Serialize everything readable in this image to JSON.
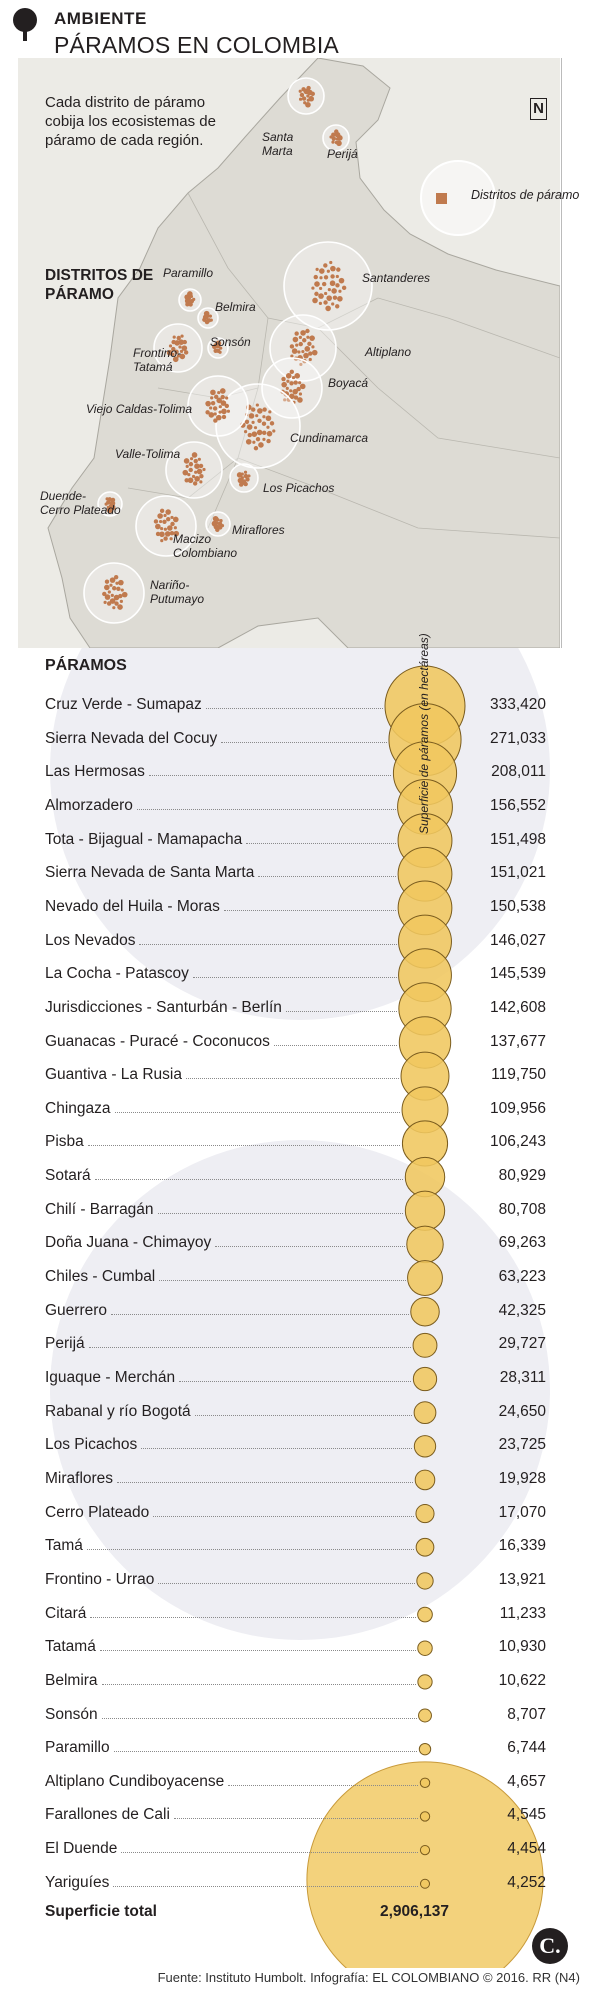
{
  "header": {
    "section": "AMBIENTE",
    "title": "PÁRAMOS EN COLOMBIA"
  },
  "map": {
    "intro": "Cada distrito de páramo cobija los ecosistemas de páramo de cada región.",
    "districts_heading": "DISTRITOS DE PÁRAMO",
    "legend_label": "Distritos de páramo",
    "north_label": "N",
    "colors": {
      "land": "#dddbd4",
      "outside": "#ecebe6",
      "paramo": "#c07a4e",
      "circle": "#ffffff"
    },
    "districts": [
      {
        "name": "Santa Marta",
        "lines": [
          "Santa",
          "Marta"
        ]
      },
      {
        "name": "Perijá",
        "lines": [
          "Perijá"
        ]
      },
      {
        "name": "Santanderes",
        "lines": [
          "Santanderes"
        ]
      },
      {
        "name": "Altiplano",
        "lines": [
          "Altiplano"
        ]
      },
      {
        "name": "Boyacá",
        "lines": [
          "Boyacá"
        ]
      },
      {
        "name": "Cundinamarca",
        "lines": [
          "Cundinamarca"
        ]
      },
      {
        "name": "Los Picachos",
        "lines": [
          "Los Picachos"
        ]
      },
      {
        "name": "Miraflores",
        "lines": [
          "Miraflores"
        ]
      },
      {
        "name": "Paramillo",
        "lines": [
          "Paramillo"
        ]
      },
      {
        "name": "Belmira",
        "lines": [
          "Belmira"
        ]
      },
      {
        "name": "Sonsón",
        "lines": [
          "Sonsón"
        ]
      },
      {
        "name": "Frontino-Tatamá",
        "lines": [
          "Frontino-",
          "Tatamá"
        ]
      },
      {
        "name": "Viejo Caldas-Tolima",
        "lines": [
          "Viejo Caldas-Tolima"
        ]
      },
      {
        "name": "Valle-Tolima",
        "lines": [
          "Valle-Tolima"
        ]
      },
      {
        "name": "Duende-Cerro Plateado",
        "lines": [
          "Duende-",
          "Cerro Plateado"
        ]
      },
      {
        "name": "Macizo Colombiano",
        "lines": [
          "Macizo",
          "Colombiano"
        ]
      },
      {
        "name": "Nariño-Putumayo",
        "lines": [
          "Nariño-",
          "Putumayo"
        ]
      }
    ]
  },
  "chart_data": {
    "type": "bubble",
    "list_heading": "PÁRAMOS",
    "value_label": "Superficie de páramos (en hectáreas)",
    "colors": {
      "bubble": "#f0c75e",
      "stroke": "#7a5c1e",
      "total": "#f3d27c"
    },
    "categories": [
      "Cruz Verde - Sumapaz",
      "Sierra Nevada del Cocuy",
      "Las Hermosas",
      "Almorzadero",
      "Tota - Bijagual - Mamapacha",
      "Sierra Nevada de Santa Marta",
      "Nevado del Huila - Moras",
      "Los Nevados",
      "La Cocha - Patascoy",
      "Jurisdicciones - Santurbán - Berlín",
      "Guanacas - Puracé - Coconucos",
      "Guantiva - La Rusia",
      "Chingaza",
      "Pisba",
      "Sotará",
      "Chilí - Barragán",
      "Doña Juana - Chimayoy",
      "Chiles - Cumbal",
      "Guerrero",
      "Perijá",
      "Iguaque - Merchán",
      "Rabanal y río Bogotá",
      "Los Picachos",
      "Miraflores",
      "Cerro Plateado",
      "Tamá",
      "Frontino - Urrao",
      "Citará",
      "Tatamá",
      "Belmira",
      "Sonsón",
      "Paramillo",
      "Altiplano Cundiboyacense",
      "Farallones de Cali",
      "El Duende",
      "Yariguíes"
    ],
    "values": [
      333420,
      271033,
      208011,
      156552,
      151498,
      151021,
      150538,
      146027,
      145539,
      142608,
      137677,
      119750,
      109956,
      106243,
      80929,
      80708,
      69263,
      63223,
      42325,
      29727,
      28311,
      24650,
      23725,
      19928,
      17070,
      16339,
      13921,
      11233,
      10930,
      10622,
      8707,
      6744,
      4657,
      4545,
      4454,
      4252
    ],
    "labels": [
      "333,420",
      "271,033",
      "208,011",
      "156,552",
      "151,498",
      "151,021",
      "150,538",
      "146,027",
      "145,539",
      "142,608",
      "137,677",
      "119,750",
      "109,956",
      "106,243",
      "80,929",
      "80,708",
      "69,263",
      "63,223",
      "42,325",
      "29,727",
      "28,311",
      "24,650",
      "23,725",
      "19,928",
      "17,070",
      "16,339",
      "13,921",
      "11,233",
      "10,930",
      "10,622",
      "8,707",
      "6,744",
      "4,657",
      "4,545",
      "4,454",
      "4,252"
    ],
    "total": {
      "label": "Superficie total",
      "value": 2906137,
      "display": "2,906,137"
    }
  },
  "footer": {
    "source": "Fuente: Instituto Humbolt. Infografía: EL COLOMBIANO © 2016. RR (N4)",
    "logo": "C."
  }
}
